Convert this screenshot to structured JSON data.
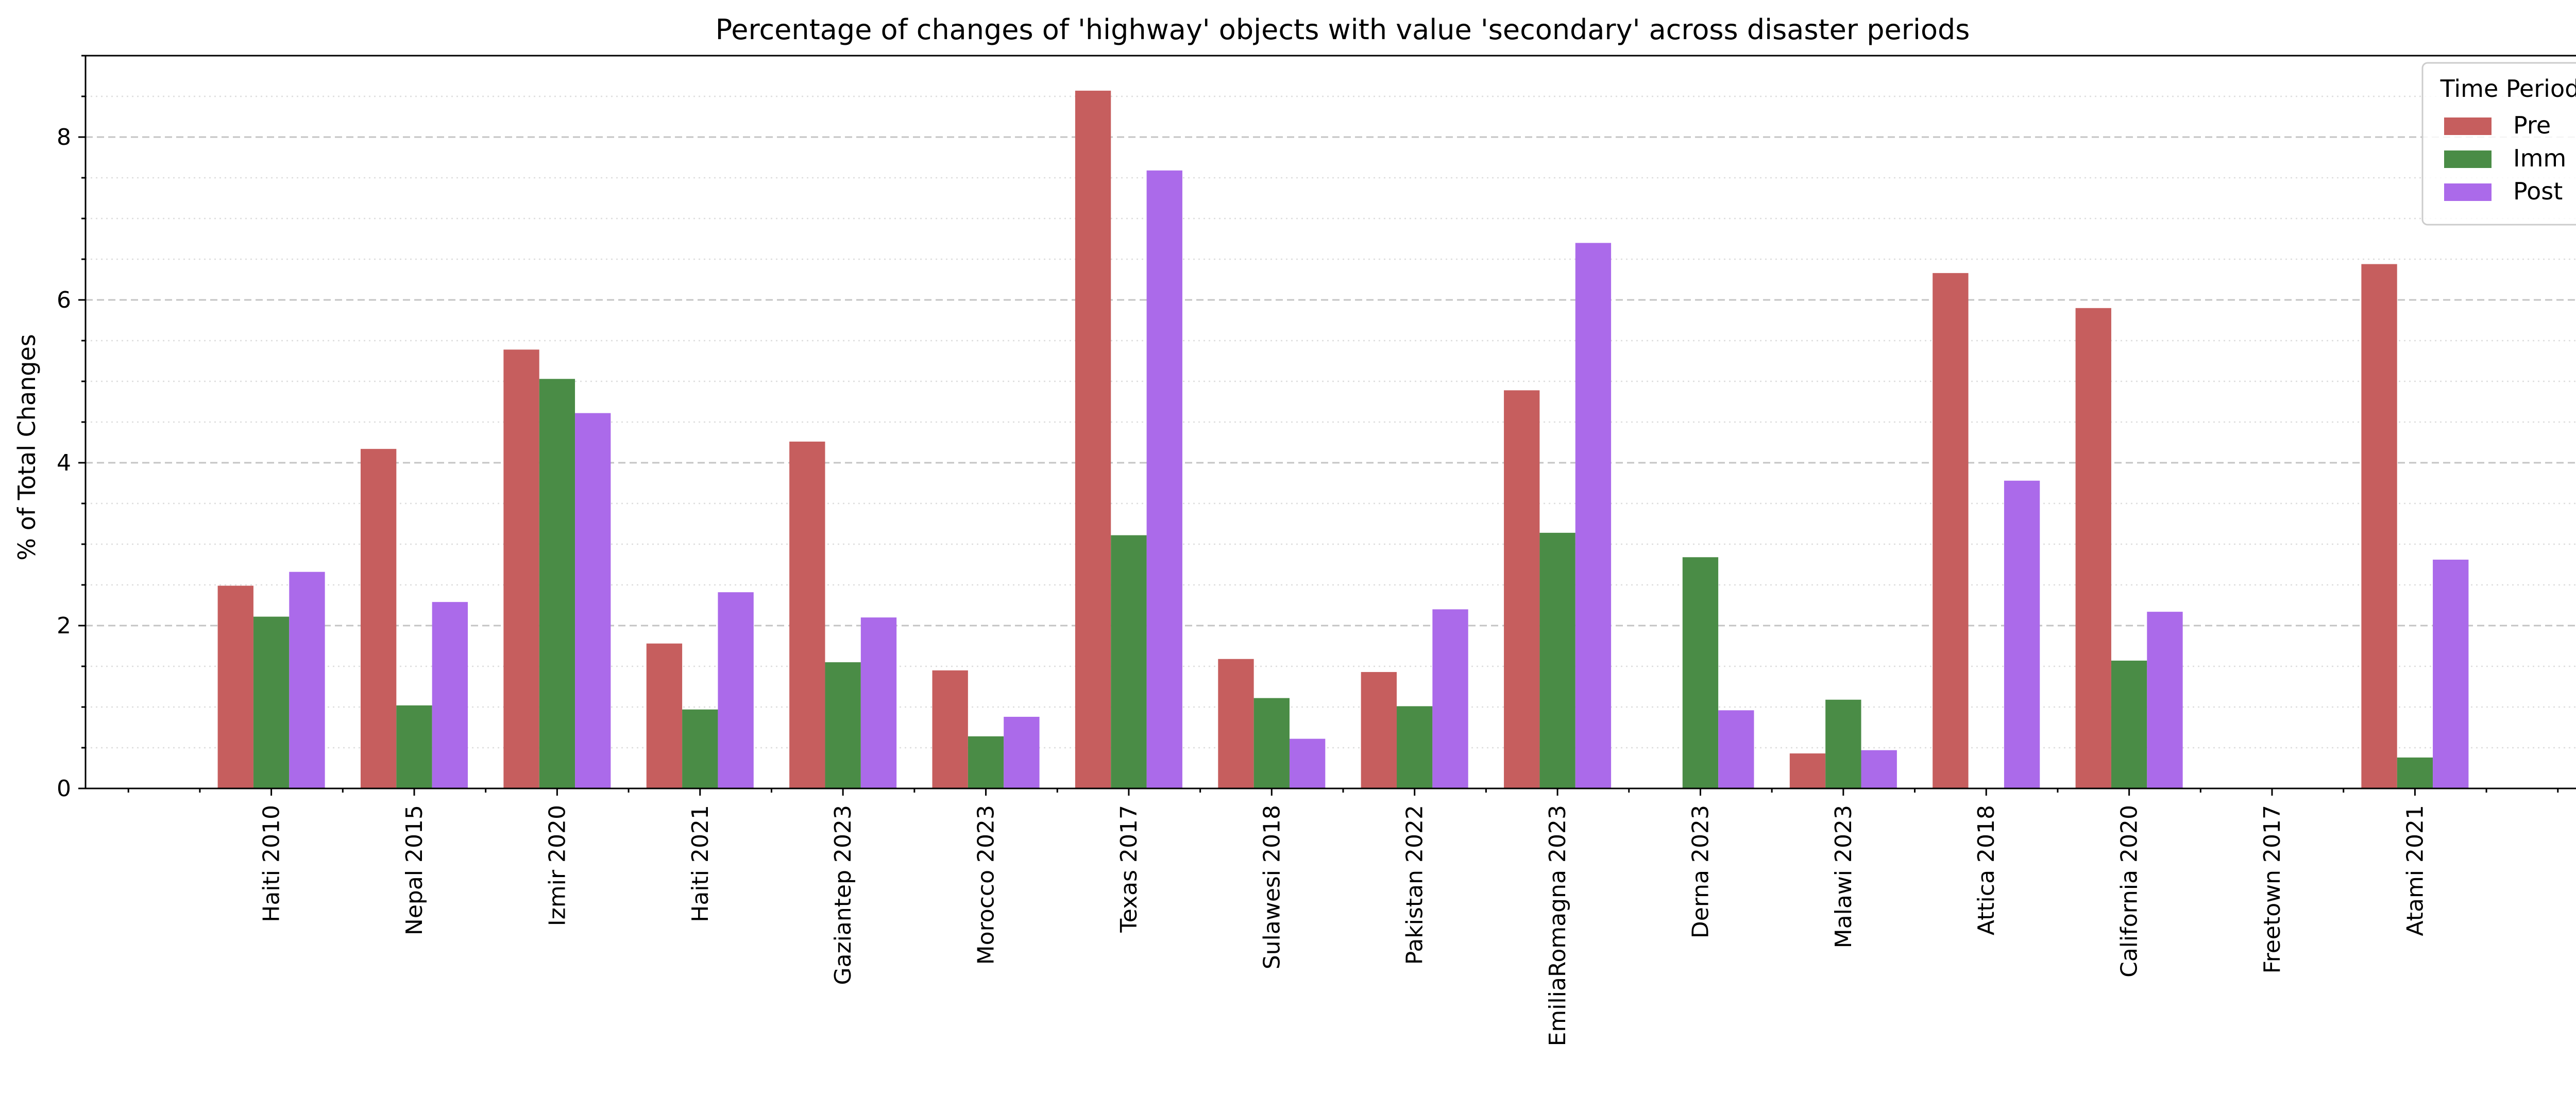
{
  "chart_data": {
    "type": "bar",
    "title": "Percentage of changes of 'highway' objects with value 'secondary' across disaster periods",
    "xlabel": "",
    "ylabel": "% of Total Changes",
    "ylim": [
      0,
      9
    ],
    "yticks": [
      0,
      2,
      4,
      6,
      8
    ],
    "grid": {
      "major": "dashed",
      "minor": "dotted",
      "axis": "y"
    },
    "legend": {
      "title": "Time Period",
      "placement": "top-right"
    },
    "categories": [
      "Haiti 2010",
      "Nepal 2015",
      "Izmir 2020",
      "Haiti 2021",
      "Gaziantep 2023",
      "Morocco 2023",
      "Texas 2017",
      "Sulawesi 2018",
      "Pakistan 2022",
      "EmiliaRomagna 2023",
      "Derna 2023",
      "Malawi 2023",
      "Attica 2018",
      "California 2020",
      "Freetown 2017",
      "Atami 2021"
    ],
    "series": [
      {
        "name": "Pre",
        "color": "#c65e5e",
        "values": [
          2.49,
          4.17,
          5.39,
          1.78,
          4.26,
          1.45,
          8.57,
          1.59,
          1.43,
          4.89,
          0,
          0.43,
          6.33,
          5.9,
          0,
          6.44
        ]
      },
      {
        "name": "Imm",
        "color": "#4a8c46",
        "values": [
          2.11,
          1.02,
          5.03,
          0.97,
          1.55,
          0.64,
          3.11,
          1.11,
          1.01,
          3.14,
          2.84,
          1.09,
          0,
          1.57,
          0,
          0.38
        ]
      },
      {
        "name": "Post",
        "color": "#ab6aea",
        "values": [
          2.66,
          2.29,
          4.61,
          2.41,
          2.1,
          0.88,
          7.59,
          0.61,
          2.2,
          6.7,
          0.96,
          0.47,
          3.78,
          2.17,
          0,
          2.81
        ]
      }
    ]
  }
}
